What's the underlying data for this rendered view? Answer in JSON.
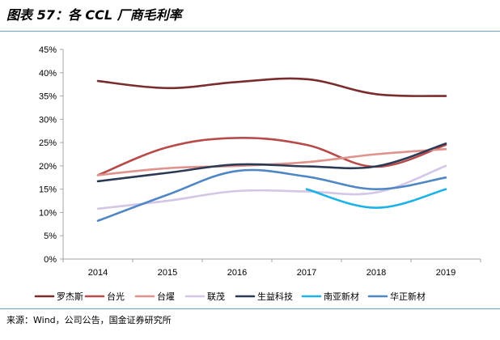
{
  "header": {
    "title": "图表 57：各 CCL 厂商毛利率"
  },
  "footer": {
    "source": "来源：Wind，公司公告，国金证券研究所"
  },
  "colors": {
    "rule": "#6ea0c8",
    "axis": "#a6a6a6"
  },
  "chart_data": {
    "type": "line",
    "title": "",
    "xlabel": "",
    "ylabel": "",
    "categories": [
      "2014",
      "2015",
      "2016",
      "2017",
      "2018",
      "2019"
    ],
    "ylim": [
      0,
      45
    ],
    "yticks": [
      "0%",
      "5%",
      "10%",
      "15%",
      "20%",
      "25%",
      "30%",
      "35%",
      "40%",
      "45%"
    ],
    "grid": false,
    "legend_position": "bottom",
    "series": [
      {
        "name": "罗杰斯",
        "color": "#7b2c2c",
        "values": [
          38.2,
          36.7,
          38.0,
          38.6,
          35.4,
          35.0
        ]
      },
      {
        "name": "台光",
        "color": "#b84a4a",
        "values": [
          18.0,
          24.0,
          26.0,
          24.5,
          19.8,
          24.5
        ]
      },
      {
        "name": "台燿",
        "color": "#e0928c",
        "values": [
          18.0,
          19.5,
          20.0,
          20.8,
          22.5,
          23.6
        ]
      },
      {
        "name": "联茂",
        "color": "#d3c6e6",
        "values": [
          10.8,
          12.5,
          14.6,
          14.5,
          14.3,
          20.0
        ]
      },
      {
        "name": "生益科技",
        "color": "#2c3b55",
        "values": [
          16.7,
          18.5,
          20.3,
          19.9,
          19.9,
          24.8
        ]
      },
      {
        "name": "南亚新材",
        "color": "#1ab2e8",
        "values": [
          null,
          null,
          null,
          15.0,
          11.0,
          15.0
        ]
      },
      {
        "name": "华正新材",
        "color": "#4f86c6",
        "values": [
          8.2,
          13.8,
          18.9,
          17.7,
          15.0,
          17.5
        ]
      }
    ]
  }
}
